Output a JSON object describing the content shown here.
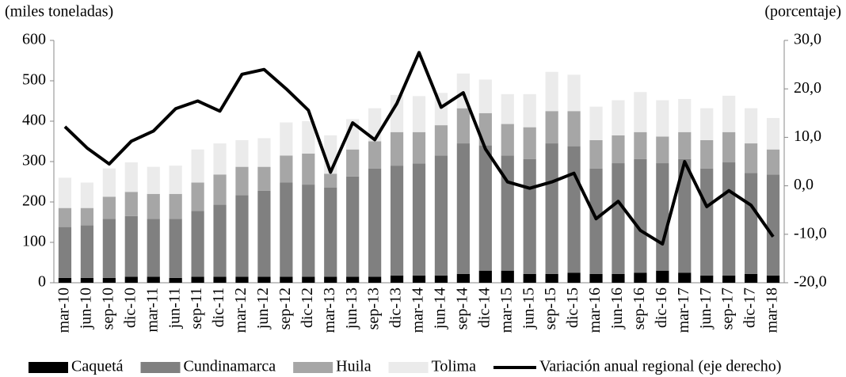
{
  "chart_data": {
    "type": "bar",
    "y_axis_label": "(miles  toneladas)",
    "y2_axis_label": "(porcentaje)",
    "categories": [
      "mar-10",
      "jun-10",
      "sep-10",
      "dic-10",
      "mar-11",
      "jun-11",
      "sep-11",
      "dic-11",
      "mar-12",
      "jun-12",
      "sep-12",
      "dic-12",
      "mar-13",
      "jun-13",
      "sep-13",
      "dic-13",
      "mar-14",
      "jun-14",
      "sep-14",
      "dic-14",
      "mar-15",
      "jun-15",
      "sep-15",
      "dic-15",
      "mar-16",
      "jun-16",
      "sep-16",
      "dic-16",
      "mar-17",
      "jun-17",
      "sep-17",
      "dic-17",
      "mar-18"
    ],
    "stacked": true,
    "series": [
      {
        "name": "Caquetá",
        "color": "#000000",
        "values": [
          12,
          12,
          12,
          15,
          15,
          12,
          15,
          15,
          15,
          15,
          15,
          15,
          15,
          15,
          15,
          18,
          18,
          18,
          22,
          30,
          30,
          22,
          22,
          25,
          22,
          22,
          25,
          30,
          25,
          18,
          18,
          22,
          18
        ]
      },
      {
        "name": "Cundinamarca",
        "color": "#808080",
        "values": [
          126,
          130,
          146,
          150,
          143,
          146,
          163,
          178,
          202,
          213,
          233,
          228,
          221,
          248,
          268,
          272,
          277,
          297,
          323,
          310,
          285,
          284,
          323,
          313,
          261,
          274,
          281,
          266,
          281,
          265,
          280,
          250,
          250
        ]
      },
      {
        "name": "Huila",
        "color": "#a6a6a6",
        "values": [
          47,
          43,
          55,
          60,
          62,
          62,
          70,
          75,
          70,
          59,
          67,
          77,
          34,
          67,
          67,
          83,
          78,
          75,
          87,
          80,
          78,
          79,
          80,
          87,
          70,
          69,
          67,
          66,
          67,
          70,
          75,
          73,
          62
        ]
      },
      {
        "name": "Tolima",
        "color": "#ebebeb",
        "values": [
          75,
          63,
          70,
          73,
          67,
          70,
          82,
          77,
          66,
          71,
          82,
          80,
          95,
          75,
          82,
          92,
          89,
          80,
          86,
          83,
          74,
          82,
          97,
          90,
          83,
          87,
          99,
          90,
          82,
          79,
          90,
          87,
          78
        ]
      },
      {
        "name": "Variación anual regional (eje derecho)",
        "color": "#000000",
        "type": "line",
        "axis": "y2",
        "values": [
          12.2,
          7.8,
          4.5,
          9.2,
          11.3,
          15.9,
          17.5,
          15.4,
          23.0,
          24.0,
          20.0,
          15.6,
          2.8,
          13.0,
          9.5,
          17.0,
          27.5,
          16.2,
          19.2,
          7.6,
          0.8,
          -0.5,
          0.8,
          2.6,
          -6.8,
          -3.2,
          -9.2,
          -12.0,
          5.0,
          -4.3,
          -1.0,
          -4.0,
          -10.5
        ]
      }
    ],
    "ylim": [
      0,
      600
    ],
    "yticks": [
      0,
      100,
      200,
      300,
      400,
      500,
      600
    ],
    "y2lim": [
      -20,
      30
    ],
    "y2ticks": [
      {
        "value": -20,
        "label": "-20,0"
      },
      {
        "value": -10,
        "label": "-10,0"
      },
      {
        "value": 0,
        "label": "0,0"
      },
      {
        "value": 10,
        "label": "10,0"
      },
      {
        "value": 20,
        "label": "20,0"
      },
      {
        "value": 30,
        "label": "30,0"
      }
    ],
    "legend": "bottom"
  }
}
